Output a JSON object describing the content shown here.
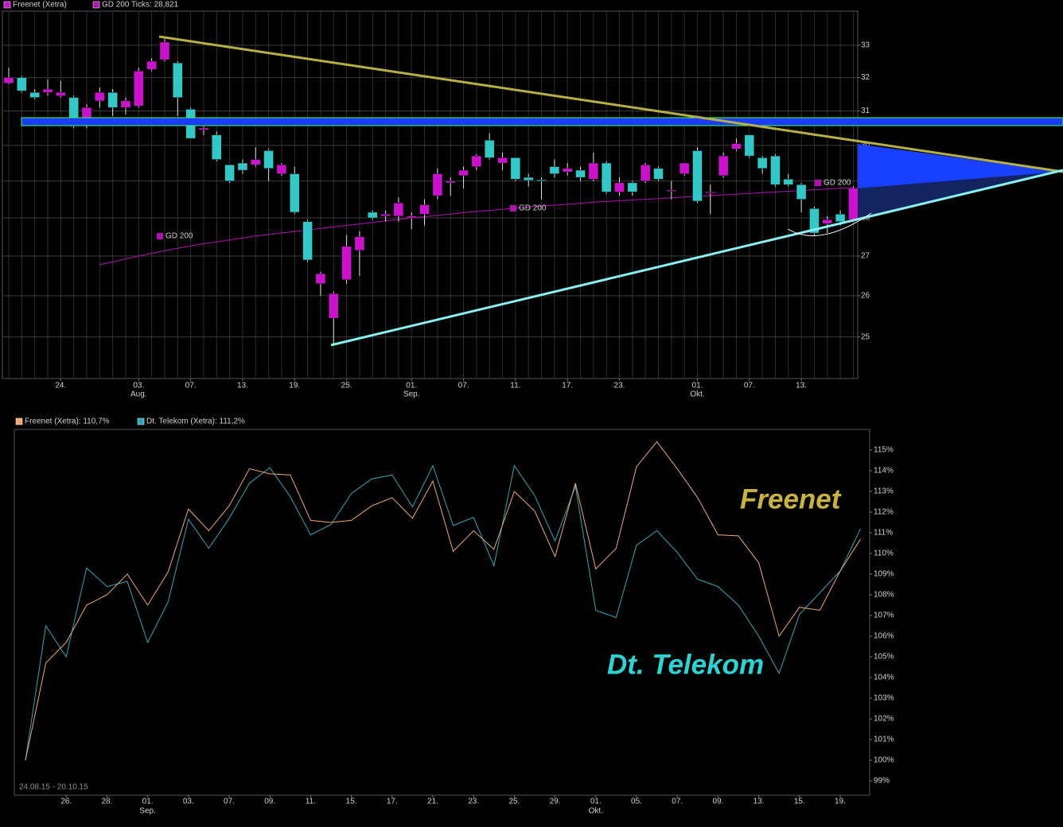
{
  "chart_data": [
    {
      "type": "candlestick",
      "categories": [
        null,
        null,
        null,
        null,
        "24.",
        null,
        null,
        null,
        null,
        null,
        "03.",
        null,
        null,
        null,
        "07.",
        null,
        null,
        null,
        "13.",
        null,
        null,
        null,
        "19.",
        null,
        null,
        null,
        "25.",
        null,
        null,
        null,
        null,
        "01.",
        null,
        null,
        null,
        "07.",
        null,
        null,
        null,
        "11.",
        null,
        null,
        null,
        "17.",
        null,
        null,
        null,
        "23.",
        null,
        null,
        null,
        null,
        null,
        "01.",
        null,
        null,
        null,
        "07.",
        null,
        null,
        null,
        "13.",
        null,
        null,
        null,
        null
      ],
      "month_labels": [
        null,
        null,
        null,
        null,
        null,
        null,
        null,
        null,
        null,
        null,
        "Aug.",
        null,
        null,
        null,
        null,
        null,
        null,
        null,
        null,
        null,
        null,
        null,
        null,
        null,
        null,
        null,
        null,
        null,
        null,
        null,
        null,
        "Sep.",
        null,
        null,
        null,
        null,
        null,
        null,
        null,
        null,
        null,
        null,
        null,
        null,
        null,
        null,
        null,
        null,
        null,
        null,
        null,
        null,
        null,
        "Okt.",
        null,
        null,
        null,
        null,
        null,
        null,
        null,
        null,
        null,
        null,
        null,
        null
      ],
      "series": [
        {
          "name": "Freenet (Xetra)",
          "up_color": "#cc11cc",
          "down_color": "#33c8c8",
          "open": [
            31.83,
            32.0,
            31.55,
            31.55,
            31.45,
            31.4,
            30.6,
            31.3,
            31.55,
            31.1,
            31.15,
            32.25,
            32.55,
            32.45,
            31.05,
            30.45,
            30.3,
            29.45,
            29.5,
            29.45,
            29.85,
            29.2,
            29.2,
            27.9,
            26.3,
            25.45,
            26.4,
            27.15,
            28.15,
            28.05,
            28.05,
            28.0,
            28.1,
            28.6,
            28.95,
            29.15,
            29.4,
            30.15,
            29.5,
            29.65,
            29.1,
            29.03,
            29.4,
            29.25,
            29.3,
            29.05,
            29.5,
            28.7,
            28.95,
            29.0,
            29.35,
            28.75,
            29.2,
            29.85,
            28.7,
            29.15,
            29.9,
            30.3,
            29.65,
            29.7,
            29.05,
            28.9,
            28.25,
            27.85,
            28.1,
            27.95
          ],
          "high": [
            32.3,
            32.05,
            31.65,
            31.95,
            31.9,
            31.45,
            31.2,
            31.7,
            31.65,
            31.4,
            32.3,
            32.6,
            33.2,
            32.5,
            31.1,
            30.55,
            30.4,
            29.45,
            29.6,
            29.95,
            29.9,
            29.5,
            29.4,
            27.95,
            26.6,
            26.1,
            27.55,
            27.65,
            28.2,
            28.2,
            28.55,
            28.15,
            28.5,
            29.35,
            29.1,
            29.4,
            29.75,
            30.35,
            29.8,
            29.65,
            29.2,
            29.1,
            29.6,
            29.5,
            29.4,
            29.8,
            29.55,
            29.1,
            29.0,
            29.5,
            29.4,
            29.0,
            29.5,
            29.95,
            28.9,
            29.8,
            30.2,
            30.3,
            29.7,
            29.75,
            29.2,
            28.95,
            28.3,
            28.05,
            28.2,
            28.85
          ],
          "low": [
            31.8,
            31.55,
            31.35,
            31.45,
            31.4,
            30.5,
            30.5,
            31.1,
            30.85,
            30.9,
            31.1,
            32.2,
            32.5,
            30.85,
            30.2,
            30.3,
            29.55,
            28.95,
            29.2,
            29.4,
            29.0,
            29.15,
            28.1,
            26.85,
            26.0,
            24.8,
            26.3,
            26.5,
            27.95,
            27.9,
            27.9,
            27.7,
            27.8,
            28.5,
            28.6,
            28.8,
            29.3,
            29.6,
            29.3,
            29.0,
            28.85,
            28.5,
            29.1,
            29.15,
            29.0,
            29.0,
            28.65,
            28.6,
            28.6,
            28.95,
            29.0,
            28.5,
            29.15,
            28.4,
            28.1,
            29.1,
            29.85,
            29.65,
            29.2,
            28.85,
            28.85,
            28.15,
            27.55,
            27.6,
            27.8,
            27.9
          ],
          "close": [
            32.0,
            31.6,
            31.4,
            31.65,
            31.55,
            30.55,
            31.1,
            31.55,
            31.1,
            31.3,
            32.2,
            32.5,
            33.1,
            31.4,
            30.2,
            30.5,
            29.6,
            29.0,
            29.3,
            29.6,
            29.35,
            29.45,
            28.15,
            26.9,
            26.55,
            26.05,
            27.25,
            27.5,
            28.0,
            28.1,
            28.4,
            28.05,
            28.35,
            29.2,
            29.0,
            29.3,
            29.7,
            29.65,
            29.65,
            29.05,
            29.02,
            29.0,
            29.2,
            29.35,
            29.1,
            29.5,
            28.7,
            28.95,
            28.7,
            29.45,
            29.05,
            28.75,
            29.5,
            28.45,
            28.7,
            29.7,
            30.05,
            29.7,
            29.35,
            28.9,
            28.9,
            28.5,
            27.6,
            27.95,
            27.9,
            28.8
          ]
        },
        {
          "name": "GD 200 Ticks: 28,821",
          "color": "#b010b0",
          "values": [
            null,
            null,
            null,
            null,
            null,
            null,
            null,
            26.78,
            26.85,
            26.93,
            27.0,
            27.07,
            27.14,
            27.2,
            27.26,
            27.32,
            27.37,
            27.42,
            27.47,
            27.52,
            27.56,
            27.6,
            27.64,
            27.68,
            27.72,
            27.76,
            27.8,
            27.84,
            27.88,
            27.92,
            27.96,
            28.0,
            28.03,
            28.07,
            28.1,
            28.14,
            28.17,
            28.2,
            28.23,
            28.26,
            28.29,
            28.32,
            28.34,
            28.37,
            28.39,
            28.42,
            28.44,
            28.46,
            28.48,
            28.5,
            28.52,
            28.54,
            28.56,
            28.58,
            28.6,
            28.62,
            28.64,
            28.66,
            28.68,
            28.7,
            28.72,
            28.74,
            28.76,
            28.78,
            28.8,
            28.82
          ]
        }
      ],
      "annotations": [
        "GD 200",
        "GD 200",
        "GD 200"
      ],
      "ylim": [
        24.03,
        34.09
      ],
      "yticks": [
        25,
        26,
        27,
        28,
        29,
        30,
        31,
        32,
        33
      ],
      "log": true,
      "grid": true
    },
    {
      "type": "line",
      "categories": [
        null,
        null,
        "26.",
        null,
        "28.",
        null,
        "01.",
        null,
        "03.",
        null,
        "07.",
        null,
        "09.",
        null,
        "11.",
        null,
        "15.",
        null,
        "17.",
        null,
        "21.",
        null,
        "23.",
        null,
        "25.",
        null,
        "29.",
        null,
        "01.",
        null,
        "05.",
        null,
        "07.",
        null,
        "09.",
        null,
        "13.",
        null,
        "15.",
        null,
        "19.",
        null
      ],
      "month_labels": [
        null,
        null,
        null,
        null,
        null,
        null,
        "Sep.",
        null,
        null,
        null,
        null,
        null,
        null,
        null,
        null,
        null,
        null,
        null,
        null,
        null,
        null,
        null,
        null,
        null,
        null,
        null,
        null,
        null,
        "Okt.",
        null,
        null,
        null,
        null,
        null,
        null,
        null,
        null,
        null,
        null,
        null,
        null,
        null
      ],
      "series": [
        {
          "name": "Freenet (Xetra): 110,7%",
          "color": "#f0a868",
          "values": [
            100.0,
            104.7,
            105.7,
            107.5,
            108.0,
            109.0,
            107.5,
            109.1,
            112.15,
            111.1,
            112.3,
            114.1,
            113.85,
            113.8,
            111.6,
            111.5,
            111.6,
            112.3,
            112.7,
            111.7,
            113.5,
            110.1,
            111.1,
            110.2,
            113.0,
            112.05,
            109.85,
            113.4,
            109.25,
            110.25,
            114.2,
            115.4,
            114.1,
            112.7,
            110.9,
            110.85,
            109.55,
            106.0,
            107.4,
            107.25,
            109.15,
            110.7
          ]
        },
        {
          "name": "Dt. Telekom (Xetra): 111,2%",
          "color": "#2aa8b8",
          "values": [
            100.0,
            106.5,
            105.0,
            109.3,
            108.4,
            108.65,
            105.7,
            107.65,
            111.65,
            110.25,
            111.7,
            113.4,
            114.15,
            112.75,
            110.9,
            111.4,
            112.9,
            113.6,
            113.8,
            112.25,
            114.25,
            111.35,
            111.75,
            109.4,
            114.25,
            112.8,
            110.6,
            113.25,
            107.25,
            106.9,
            110.4,
            111.1,
            110.05,
            108.75,
            108.4,
            107.5,
            106.0,
            104.2,
            107.05,
            108.1,
            109.15,
            111.2
          ]
        }
      ],
      "annotations": [
        "Freenet",
        "Dt. Telekom"
      ],
      "annotation_colors": [
        "#c8b43c",
        "#2ad4d4"
      ],
      "date_range": "24.08.15 - 20.10.15",
      "ylim": [
        98.31,
        116
      ],
      "yticks": [
        {
          "value": 99,
          "label": "99%"
        },
        {
          "value": 100,
          "label": "100%"
        },
        {
          "value": 101,
          "label": "101%"
        },
        {
          "value": 102,
          "label": "102%"
        },
        {
          "value": 103,
          "label": "103%"
        },
        {
          "value": 104,
          "label": "104%"
        },
        {
          "value": 105,
          "label": "105%"
        },
        {
          "value": 106,
          "label": "106%"
        },
        {
          "value": 107,
          "label": "107%"
        },
        {
          "value": 108,
          "label": "108%"
        },
        {
          "value": 109,
          "label": "109%"
        },
        {
          "value": 110,
          "label": "110%"
        },
        {
          "value": 111,
          "label": "111%"
        },
        {
          "value": 112,
          "label": "112%"
        },
        {
          "value": 113,
          "label": "113%"
        },
        {
          "value": 114,
          "label": "114%"
        },
        {
          "value": 115,
          "label": "115%"
        }
      ],
      "log": false,
      "grid": false
    }
  ]
}
